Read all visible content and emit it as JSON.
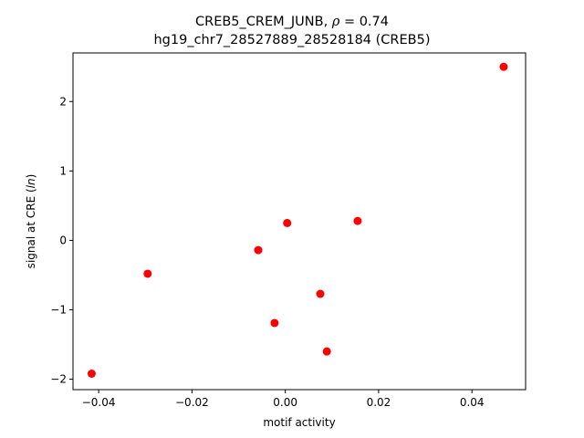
{
  "chart_data": {
    "type": "scatter",
    "title_line1": "CREB5_CREM_JUNB, ",
    "title_rho_symbol": "ρ",
    "title_rho_value": " = 0.74",
    "title_line2": "hg19_chr7_28527889_28528184 (CREB5)",
    "xlabel": "motif activity",
    "ylabel_prefix": "signal at CRE (",
    "ylabel_italic": "ln",
    "ylabel_suffix": ")",
    "xlim": [
      -0.0455,
      0.0515
    ],
    "ylim": [
      -2.15,
      2.7
    ],
    "xticks": [
      -0.04,
      -0.02,
      0.0,
      0.02,
      0.04
    ],
    "xtick_labels": [
      "−0.04",
      "−0.02",
      "0.00",
      "0.02",
      "0.04"
    ],
    "yticks": [
      -2,
      -1,
      0,
      1,
      2
    ],
    "ytick_labels": [
      "−2",
      "−1",
      "0",
      "1",
      "2"
    ],
    "grid": false,
    "marker_color": "#ff0000",
    "points": [
      {
        "x": -0.0415,
        "y": -1.92
      },
      {
        "x": -0.0295,
        "y": -0.48
      },
      {
        "x": -0.0058,
        "y": -0.14
      },
      {
        "x": -0.0023,
        "y": -1.19
      },
      {
        "x": 0.0004,
        "y": 0.25
      },
      {
        "x": 0.0075,
        "y": -0.77
      },
      {
        "x": 0.0089,
        "y": -1.6
      },
      {
        "x": 0.0155,
        "y": 0.28
      },
      {
        "x": 0.0468,
        "y": 2.5
      }
    ]
  }
}
